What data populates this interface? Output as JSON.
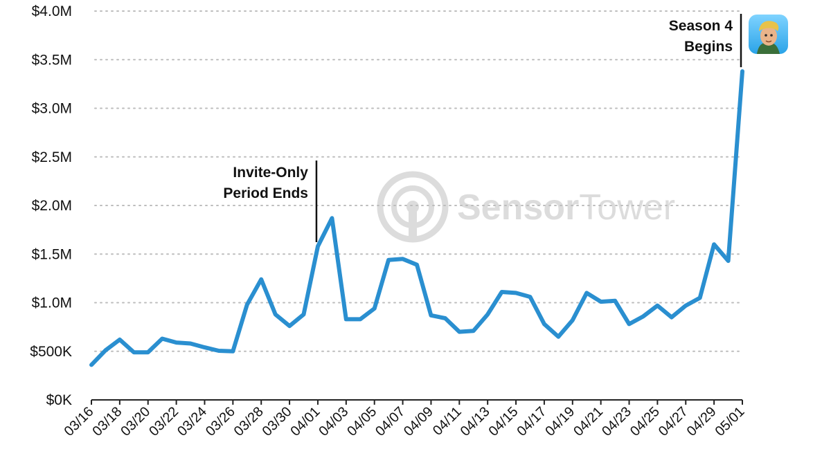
{
  "chart_data": {
    "type": "line",
    "x": [
      "03/16",
      "03/17",
      "03/18",
      "03/19",
      "03/20",
      "03/21",
      "03/22",
      "03/23",
      "03/24",
      "03/25",
      "03/26",
      "03/27",
      "03/28",
      "03/29",
      "03/30",
      "03/31",
      "04/01",
      "04/02",
      "04/03",
      "04/04",
      "04/05",
      "04/06",
      "04/07",
      "04/08",
      "04/09",
      "04/10",
      "04/11",
      "04/12",
      "04/13",
      "04/14",
      "04/15",
      "04/16",
      "04/17",
      "04/18",
      "04/19",
      "04/20",
      "04/21",
      "04/22",
      "04/23",
      "04/24",
      "04/25",
      "04/26",
      "04/27",
      "04/28",
      "04/29",
      "04/30",
      "05/01"
    ],
    "x_tick_labels": [
      "03/16",
      "03/18",
      "03/20",
      "03/22",
      "03/24",
      "03/26",
      "03/28",
      "03/30",
      "04/01",
      "04/03",
      "04/05",
      "04/07",
      "04/09",
      "04/11",
      "04/13",
      "04/15",
      "04/17",
      "04/19",
      "04/21",
      "04/23",
      "04/25",
      "04/27",
      "04/29",
      "05/01"
    ],
    "series": [
      {
        "color": "#2a8fd0",
        "values": [
          360000,
          510000,
          620000,
          490000,
          490000,
          630000,
          590000,
          580000,
          540000,
          505000,
          500000,
          980000,
          1240000,
          880000,
          760000,
          880000,
          1580000,
          1870000,
          830000,
          830000,
          940000,
          1440000,
          1450000,
          1390000,
          870000,
          840000,
          700000,
          710000,
          880000,
          1110000,
          1100000,
          1060000,
          780000,
          650000,
          820000,
          1100000,
          1010000,
          1020000,
          780000,
          860000,
          970000,
          850000,
          970000,
          1050000,
          1600000,
          1430000,
          3380000
        ]
      }
    ],
    "y_tick_labels": [
      "$0K",
      "$500K",
      "$1.0M",
      "$1.5M",
      "$2.0M",
      "$2.5M",
      "$3.0M",
      "$3.5M",
      "$4.0M"
    ],
    "ylim": [
      0,
      4000000
    ],
    "grid": "horizontal dotted",
    "annotations": [
      {
        "lines": [
          "Invite-Only",
          "Period Ends"
        ],
        "x": "04/01"
      },
      {
        "lines": [
          "Season 4",
          "Begins"
        ],
        "x": "05/01"
      }
    ],
    "watermark": "SensorTower",
    "icon": "game-app-icon"
  }
}
